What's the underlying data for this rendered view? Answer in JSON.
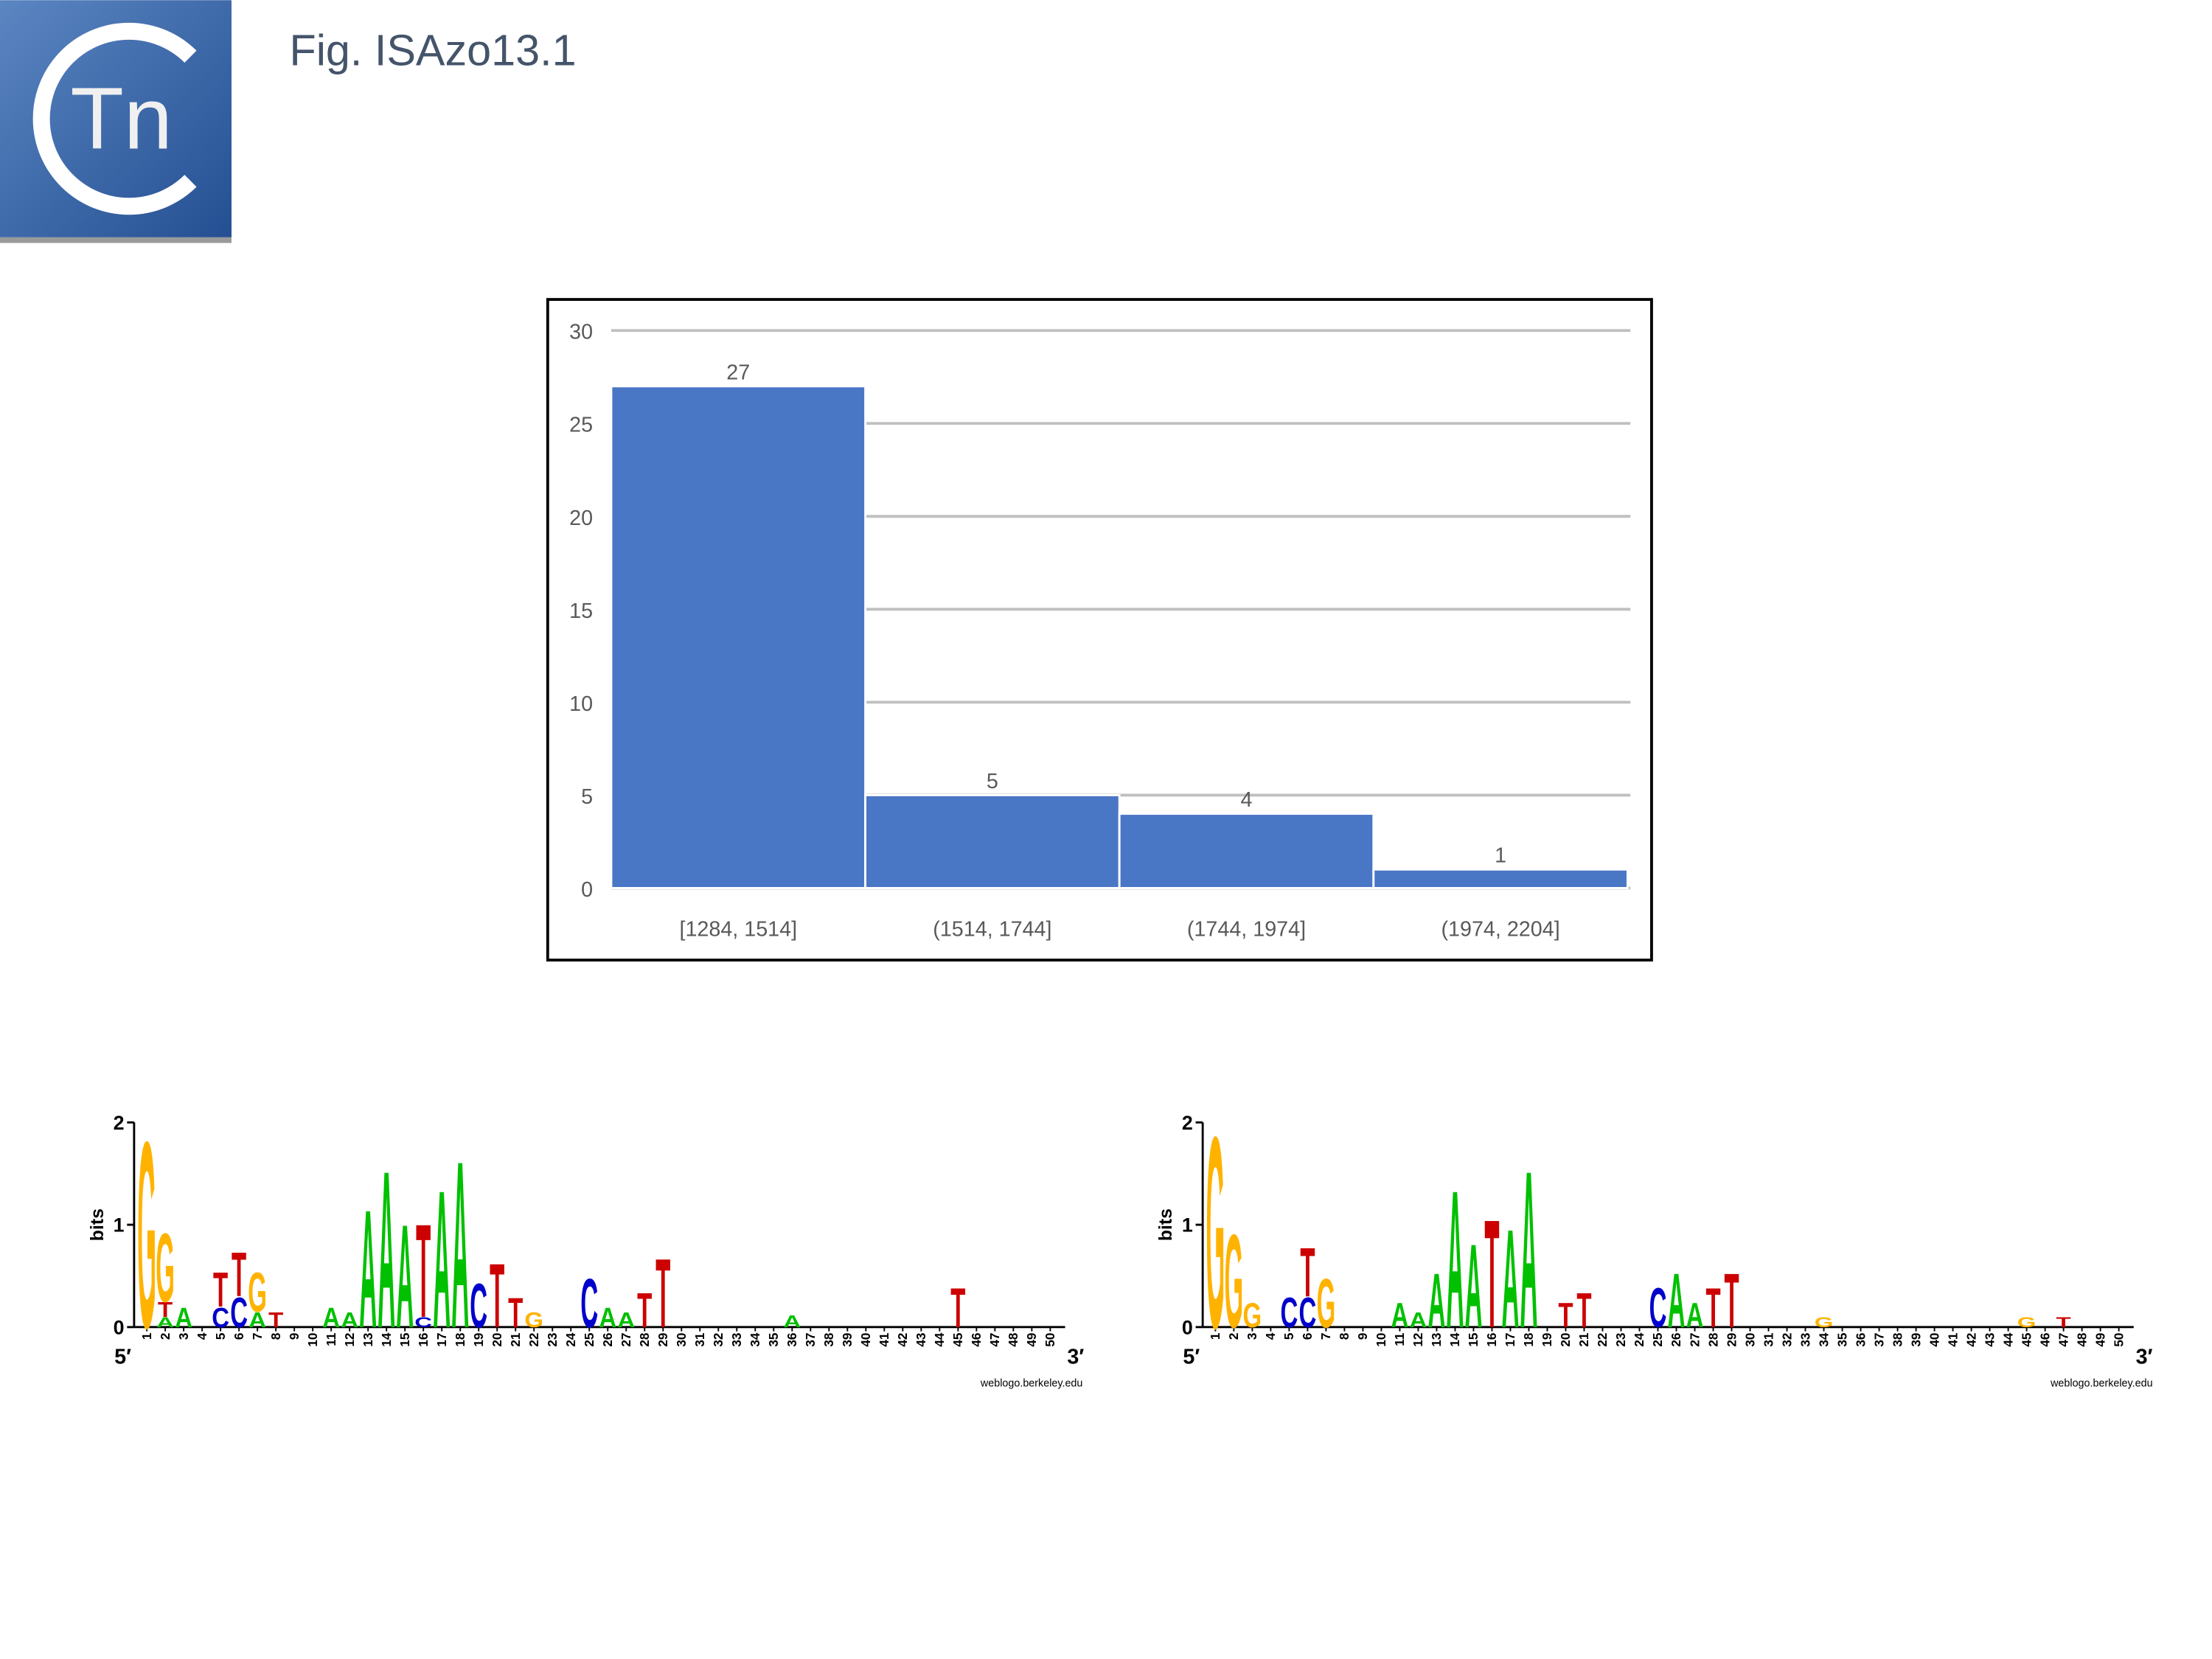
{
  "header": {
    "logo_text": "Tn",
    "title": "Fig. ISAzo13.1"
  },
  "chart_data": [
    {
      "type": "bar",
      "categories": [
        "[1284, 1514]",
        "(1514, 1744]",
        "(1744, 1974]",
        "(1974, 2204]"
      ],
      "values": [
        27,
        5,
        4,
        1
      ],
      "color": "#4a76c6",
      "ylim": [
        0,
        30
      ],
      "yticks": [
        0,
        5,
        10,
        15,
        20,
        25,
        30
      ],
      "grid": true
    },
    {
      "type": "logo",
      "ylabel": "bits",
      "ylim": [
        0,
        2
      ],
      "yticks": [
        0,
        1,
        2
      ],
      "xlim": [
        1,
        50
      ],
      "xticks": [
        1,
        2,
        3,
        4,
        5,
        6,
        7,
        8,
        9,
        10,
        11,
        12,
        13,
        14,
        15,
        16,
        17,
        18,
        19,
        20,
        21,
        22,
        23,
        24,
        25,
        26,
        27,
        28,
        29,
        30,
        31,
        32,
        33,
        34,
        35,
        36,
        37,
        38,
        39,
        40,
        41,
        42,
        43,
        44,
        45,
        46,
        47,
        48,
        49,
        50
      ],
      "start_label": "5′",
      "end_label": "3′",
      "credit": "weblogo.berkeley.edu",
      "letter_colors": {
        "A": "#00c000",
        "C": "#0000cc",
        "G": "#ffb300",
        "T": "#cc0000"
      },
      "stacks": [
        {
          "x": 1,
          "letters": [
            "G"
          ],
          "heights": [
            1.9
          ]
        },
        {
          "x": 2,
          "letters": [
            "A",
            "T",
            "G"
          ],
          "heights": [
            0.1,
            0.15,
            0.7
          ]
        },
        {
          "x": 3,
          "letters": [
            "A"
          ],
          "heights": [
            0.2
          ]
        },
        {
          "x": 5,
          "letters": [
            "C",
            "T"
          ],
          "heights": [
            0.2,
            0.35
          ]
        },
        {
          "x": 6,
          "letters": [
            "C",
            "T"
          ],
          "heights": [
            0.3,
            0.45
          ]
        },
        {
          "x": 7,
          "letters": [
            "A",
            "G"
          ],
          "heights": [
            0.15,
            0.4
          ]
        },
        {
          "x": 8,
          "letters": [
            "T"
          ],
          "heights": [
            0.15
          ]
        },
        {
          "x": 11,
          "letters": [
            "A"
          ],
          "heights": [
            0.2
          ]
        },
        {
          "x": 12,
          "letters": [
            "A"
          ],
          "heights": [
            0.15
          ]
        },
        {
          "x": 13,
          "letters": [
            "A"
          ],
          "heights": [
            1.2
          ]
        },
        {
          "x": 14,
          "letters": [
            "A"
          ],
          "heights": [
            1.6
          ]
        },
        {
          "x": 15,
          "letters": [
            "A"
          ],
          "heights": [
            1.05
          ]
        },
        {
          "x": 16,
          "letters": [
            "C",
            "T"
          ],
          "heights": [
            0.1,
            0.95
          ]
        },
        {
          "x": 17,
          "letters": [
            "A"
          ],
          "heights": [
            1.4
          ]
        },
        {
          "x": 18,
          "letters": [
            "A"
          ],
          "heights": [
            1.7
          ]
        },
        {
          "x": 19,
          "letters": [
            "C"
          ],
          "heights": [
            0.45
          ]
        },
        {
          "x": 20,
          "letters": [
            "T"
          ],
          "heights": [
            0.65
          ]
        },
        {
          "x": 21,
          "letters": [
            "T"
          ],
          "heights": [
            0.3
          ]
        },
        {
          "x": 22,
          "letters": [
            "G"
          ],
          "heights": [
            0.15
          ]
        },
        {
          "x": 25,
          "letters": [
            "C"
          ],
          "heights": [
            0.5
          ]
        },
        {
          "x": 26,
          "letters": [
            "A"
          ],
          "heights": [
            0.2
          ]
        },
        {
          "x": 27,
          "letters": [
            "A"
          ],
          "heights": [
            0.15
          ]
        },
        {
          "x": 28,
          "letters": [
            "T"
          ],
          "heights": [
            0.35
          ]
        },
        {
          "x": 29,
          "letters": [
            "T"
          ],
          "heights": [
            0.7
          ]
        },
        {
          "x": 36,
          "letters": [
            "A"
          ],
          "heights": [
            0.12
          ]
        },
        {
          "x": 45,
          "letters": [
            "T"
          ],
          "heights": [
            0.4
          ]
        }
      ]
    },
    {
      "type": "logo",
      "ylabel": "bits",
      "ylim": [
        0,
        2
      ],
      "yticks": [
        0,
        1,
        2
      ],
      "xlim": [
        1,
        50
      ],
      "xticks": [
        1,
        2,
        3,
        4,
        5,
        6,
        7,
        8,
        9,
        10,
        11,
        12,
        13,
        14,
        15,
        16,
        17,
        18,
        19,
        20,
        21,
        22,
        23,
        24,
        25,
        26,
        27,
        28,
        29,
        30,
        31,
        32,
        33,
        34,
        35,
        36,
        37,
        38,
        39,
        40,
        41,
        42,
        43,
        44,
        45,
        46,
        47,
        48,
        49,
        50
      ],
      "start_label": "5′",
      "end_label": "3′",
      "credit": "weblogo.berkeley.edu",
      "letter_colors": {
        "A": "#00c000",
        "C": "#0000cc",
        "G": "#ffb300",
        "T": "#cc0000"
      },
      "stacks": [
        {
          "x": 1,
          "letters": [
            "G"
          ],
          "heights": [
            1.95
          ]
        },
        {
          "x": 2,
          "letters": [
            "G"
          ],
          "heights": [
            0.95
          ]
        },
        {
          "x": 3,
          "letters": [
            "G"
          ],
          "heights": [
            0.25
          ]
        },
        {
          "x": 5,
          "letters": [
            "C"
          ],
          "heights": [
            0.3
          ]
        },
        {
          "x": 6,
          "letters": [
            "C",
            "T"
          ],
          "heights": [
            0.3,
            0.5
          ]
        },
        {
          "x": 7,
          "letters": [
            "G"
          ],
          "heights": [
            0.5
          ]
        },
        {
          "x": 11,
          "letters": [
            "A"
          ],
          "heights": [
            0.25
          ]
        },
        {
          "x": 12,
          "letters": [
            "A"
          ],
          "heights": [
            0.15
          ]
        },
        {
          "x": 13,
          "letters": [
            "A"
          ],
          "heights": [
            0.55
          ]
        },
        {
          "x": 14,
          "letters": [
            "A"
          ],
          "heights": [
            1.4
          ]
        },
        {
          "x": 15,
          "letters": [
            "A"
          ],
          "heights": [
            0.85
          ]
        },
        {
          "x": 16,
          "letters": [
            "T"
          ],
          "heights": [
            1.1
          ]
        },
        {
          "x": 17,
          "letters": [
            "A"
          ],
          "heights": [
            1.0
          ]
        },
        {
          "x": 18,
          "letters": [
            "A"
          ],
          "heights": [
            1.6
          ]
        },
        {
          "x": 20,
          "letters": [
            "T"
          ],
          "heights": [
            0.25
          ]
        },
        {
          "x": 21,
          "letters": [
            "T"
          ],
          "heights": [
            0.35
          ]
        },
        {
          "x": 25,
          "letters": [
            "C"
          ],
          "heights": [
            0.4
          ]
        },
        {
          "x": 26,
          "letters": [
            "A"
          ],
          "heights": [
            0.55
          ]
        },
        {
          "x": 27,
          "letters": [
            "A"
          ],
          "heights": [
            0.25
          ]
        },
        {
          "x": 28,
          "letters": [
            "T"
          ],
          "heights": [
            0.4
          ]
        },
        {
          "x": 29,
          "letters": [
            "T"
          ],
          "heights": [
            0.55
          ]
        },
        {
          "x": 34,
          "letters": [
            "G"
          ],
          "heights": [
            0.1
          ]
        },
        {
          "x": 45,
          "letters": [
            "G"
          ],
          "heights": [
            0.1
          ]
        },
        {
          "x": 47,
          "letters": [
            "T"
          ],
          "heights": [
            0.1
          ]
        }
      ]
    }
  ]
}
